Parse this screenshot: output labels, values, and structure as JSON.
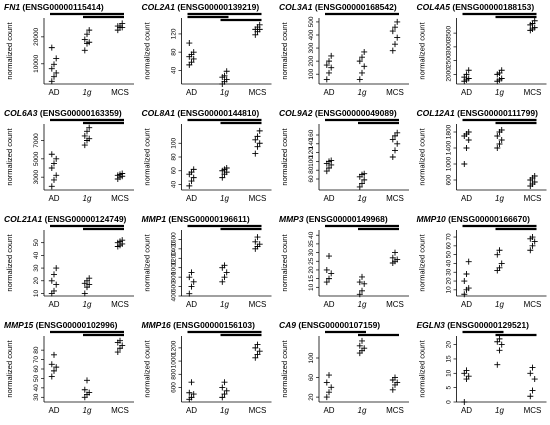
{
  "chart_data": [
    {
      "type": "scatter",
      "gene": "FN1",
      "id": " (ENSG00000115414)",
      "ylabel": "normalized count",
      "categories": [
        "AD",
        "1g",
        "MCS"
      ],
      "yticks": [
        10000,
        20000
      ],
      "ylim": [
        2500,
        27000
      ],
      "values": [
        [
          3500,
          5200,
          6600,
          8200,
          9800,
          12000,
          16000
        ],
        [
          15000,
          17500,
          18000,
          19000,
          21000,
          22500
        ],
        [
          22500,
          23500,
          23500,
          24000,
          24000,
          25000
        ]
      ],
      "brackets": [
        [
          0,
          2
        ],
        [
          1,
          2
        ]
      ]
    },
    {
      "type": "scatter",
      "gene": "COL2A1",
      "id": " (ENSG00000139219)",
      "ylabel": "normalized count",
      "categories": [
        "AD",
        "1g",
        "MCS"
      ],
      "yticks": [
        40,
        80,
        120
      ],
      "ylim": [
        10,
        155
      ],
      "values": [
        [
          52,
          58,
          65,
          70,
          75,
          80,
          100
        ],
        [
          10,
          15,
          20,
          25,
          28,
          38
        ],
        [
          118,
          125,
          130,
          130,
          135,
          140
        ]
      ],
      "brackets": [
        [
          0,
          2
        ],
        [
          0,
          1
        ],
        [
          1,
          2
        ]
      ]
    },
    {
      "type": "scatter",
      "gene": "COL3A1",
      "id": " (ENSG00000168542)",
      "ylabel": "normalized count",
      "categories": [
        "AD",
        "1g",
        "MCS"
      ],
      "yticks": [
        100,
        200,
        300,
        400,
        500
      ],
      "ylim": [
        25,
        530
      ],
      "values": [
        [
          60,
          110,
          150,
          170,
          200,
          240
        ],
        [
          60,
          110,
          160,
          200,
          230,
          270
        ],
        [
          280,
          330,
          380,
          430,
          460,
          500
        ]
      ],
      "brackets": [
        [
          0,
          2
        ]
      ]
    },
    {
      "type": "scatter",
      "gene": "COL4A5",
      "id": " (ENSG00000188153)",
      "ylabel": "normalized count",
      "categories": [
        "AD",
        "1g",
        "MCS"
      ],
      "yticks": [
        2000,
        2500,
        3000,
        3500
      ],
      "ylim": [
        1650,
        4050
      ],
      "values": [
        [
          1750,
          1800,
          1850,
          1900,
          2000,
          2150
        ],
        [
          1750,
          1800,
          1850,
          2000,
          2050,
          2150
        ],
        [
          3600,
          3650,
          3700,
          3800,
          3850,
          3950
        ]
      ],
      "brackets": [
        [
          0,
          2
        ],
        [
          1,
          2
        ]
      ]
    },
    {
      "type": "scatter",
      "gene": "COL6A3",
      "id": " (ENSG00000163359)",
      "ylabel": "normalized count",
      "categories": [
        "AD",
        "1g",
        "MCS"
      ],
      "yticks": [
        3000,
        5000,
        7000
      ],
      "ylim": [
        1600,
        8800
      ],
      "values": [
        [
          2000,
          2700,
          3200,
          4000,
          4500,
          5000,
          5500
        ],
        [
          6500,
          7000,
          7200,
          7500,
          8000,
          8400
        ],
        [
          2800,
          3000,
          3100,
          3200,
          3300,
          3400
        ]
      ],
      "brackets": [
        [
          0,
          2
        ],
        [
          1,
          2
        ]
      ]
    },
    {
      "type": "scatter",
      "gene": "COL8A1",
      "id": " (ENSG00000144810)",
      "ylabel": "normalized count",
      "categories": [
        "AD",
        "1g",
        "MCS"
      ],
      "yticks": [
        40,
        60,
        80,
        100
      ],
      "ylim": [
        32,
        128
      ],
      "values": [
        [
          38,
          45,
          50,
          55,
          58,
          62
        ],
        [
          50,
          55,
          58,
          60,
          62,
          64
        ],
        [
          85,
          95,
          100,
          105,
          110,
          118
        ]
      ],
      "brackets": [
        [
          0,
          2
        ],
        [
          1,
          2
        ]
      ]
    },
    {
      "type": "scatter",
      "gene": "COL9A2",
      "id": " (ENSG00000049089)",
      "ylabel": "normalized count",
      "categories": [
        "AD",
        "1g",
        "MCS"
      ],
      "yticks": [
        60,
        80,
        100,
        120,
        140,
        160
      ],
      "ylim": [
        35,
        185
      ],
      "values": [
        [
          78,
          85,
          92,
          95,
          100,
          102
        ],
        [
          42,
          50,
          58,
          65,
          70,
          72
        ],
        [
          110,
          125,
          140,
          150,
          158,
          165
        ]
      ],
      "brackets": [
        [
          0,
          2
        ],
        [
          1,
          2
        ]
      ]
    },
    {
      "type": "scatter",
      "gene": "COL12A1",
      "id": " (ENSG00000111799)",
      "ylabel": "normalized count",
      "categories": [
        "AD",
        "1g",
        "MCS"
      ],
      "yticks": [
        600,
        1000,
        1400,
        1800
      ],
      "ylim": [
        350,
        2000
      ],
      "values": [
        [
          1000,
          1400,
          1600,
          1700,
          1750,
          1800
        ],
        [
          1400,
          1500,
          1600,
          1700,
          1800,
          1850
        ],
        [
          450,
          500,
          550,
          600,
          650,
          700
        ]
      ],
      "brackets": [
        [
          0,
          2
        ],
        [
          1,
          2
        ]
      ]
    },
    {
      "type": "scatter",
      "gene": "COL21A1",
      "id": " (ENSG00000124749)",
      "ylabel": "normalized count",
      "categories": [
        "AD",
        "1g",
        "MCS"
      ],
      "yticks": [
        10,
        20,
        30,
        40,
        50
      ],
      "ylim": [
        8,
        60
      ],
      "values": [
        [
          10,
          12,
          17,
          20,
          25,
          30
        ],
        [
          10,
          15,
          17,
          18,
          20,
          22
        ],
        [
          47,
          48,
          49,
          50,
          51,
          52
        ]
      ],
      "brackets": [
        [
          0,
          2
        ],
        [
          1,
          2
        ]
      ]
    },
    {
      "type": "scatter",
      "gene": "MMP1",
      "id": " (ENSG00000196611)",
      "ylabel": "normalized count",
      "categories": [
        "AD",
        "1g",
        "MCS"
      ],
      "yticks": [
        400,
        600,
        800,
        1000,
        1200,
        1400,
        1600
      ],
      "ylim": [
        400,
        1800
      ],
      "values": [
        [
          450,
          600,
          700,
          800,
          900
        ],
        [
          700,
          800,
          900,
          1000,
          1050
        ],
        [
          1400,
          1450,
          1500,
          1550,
          1650
        ]
      ],
      "brackets": [
        [
          0,
          2
        ],
        [
          1,
          2
        ]
      ]
    },
    {
      "type": "scatter",
      "gene": "MMP3",
      "id": " (ENSG00000149968)",
      "ylabel": "normalized count",
      "categories": [
        "AD",
        "1g",
        "MCS"
      ],
      "yticks": [
        10,
        15,
        20,
        25,
        30,
        35,
        40
      ],
      "ylim": [
        5,
        43
      ],
      "values": [
        [
          13,
          15,
          18,
          20,
          28
        ],
        [
          6,
          8,
          12,
          13,
          16
        ],
        [
          24,
          25,
          26,
          27,
          30
        ]
      ],
      "brackets": [
        [
          0,
          2
        ],
        [
          1,
          2
        ]
      ]
    },
    {
      "type": "scatter",
      "gene": "MMP10",
      "id": " (ENSG00000166670)",
      "ylabel": "normalized count",
      "categories": [
        "AD",
        "1g",
        "MCS"
      ],
      "yticks": [
        10,
        20,
        30,
        40,
        50,
        60,
        70
      ],
      "ylim": [
        3,
        78
      ],
      "values": [
        [
          5,
          10,
          12,
          20,
          28,
          42
        ],
        [
          32,
          35,
          40,
          50,
          55
        ],
        [
          55,
          60,
          65,
          68,
          70
        ]
      ],
      "brackets": [
        [
          0,
          2
        ],
        [
          1,
          2
        ]
      ]
    },
    {
      "type": "scatter",
      "gene": "MMP15",
      "id": " (ENSG00000102996)",
      "ylabel": "normalized count",
      "categories": [
        "AD",
        "1g",
        "MCS"
      ],
      "yticks": [
        30,
        40,
        50,
        60,
        70,
        80
      ],
      "ylim": [
        25,
        95
      ],
      "values": [
        [
          52,
          58,
          62,
          65,
          75
        ],
        [
          30,
          33,
          35,
          38,
          48
        ],
        [
          78,
          82,
          85,
          88,
          90
        ]
      ],
      "brackets": [
        [
          0,
          2
        ],
        [
          1,
          2
        ]
      ]
    },
    {
      "type": "scatter",
      "gene": "MMP16",
      "id": " (ENSG00000156103)",
      "ylabel": "normalized count",
      "categories": [
        "AD",
        "1g",
        "MCS"
      ],
      "yticks": [
        600,
        800,
        1000,
        1200
      ],
      "ylim": [
        380,
        1380
      ],
      "values": [
        [
          420,
          450,
          500,
          520,
          680
        ],
        [
          450,
          500,
          550,
          600,
          680
        ],
        [
          1050,
          1100,
          1150,
          1200,
          1250
        ]
      ],
      "brackets": [
        [
          0,
          2
        ],
        [
          1,
          2
        ]
      ]
    },
    {
      "type": "scatter",
      "gene": "CA9",
      "id": " (ENSG00000107159)",
      "ylabel": "normalized count",
      "categories": [
        "AD",
        "1g",
        "MCS"
      ],
      "yticks": [
        20,
        60,
        100
      ],
      "ylim": [
        10,
        145
      ],
      "values": [
        [
          20,
          30,
          40,
          50,
          65
        ],
        [
          110,
          115,
          120,
          125,
          135
        ],
        [
          35,
          45,
          50,
          55,
          60
        ]
      ],
      "brackets": [
        [
          0,
          1
        ],
        [
          1,
          2
        ]
      ]
    },
    {
      "type": "scatter",
      "gene": "EGLN3",
      "id": " (ENSG00000129521)",
      "ylabel": "normalized count",
      "categories": [
        "AD",
        "1g",
        "MCS"
      ],
      "yticks": [
        0,
        5,
        10,
        15,
        20
      ],
      "ylim": [
        0,
        23
      ],
      "values": [
        [
          0,
          8,
          9,
          10,
          11
        ],
        [
          13,
          18,
          20,
          21,
          22
        ],
        [
          2,
          4,
          8,
          10,
          12
        ]
      ],
      "brackets": [
        [
          0,
          1
        ],
        [
          1,
          2
        ]
      ]
    }
  ]
}
